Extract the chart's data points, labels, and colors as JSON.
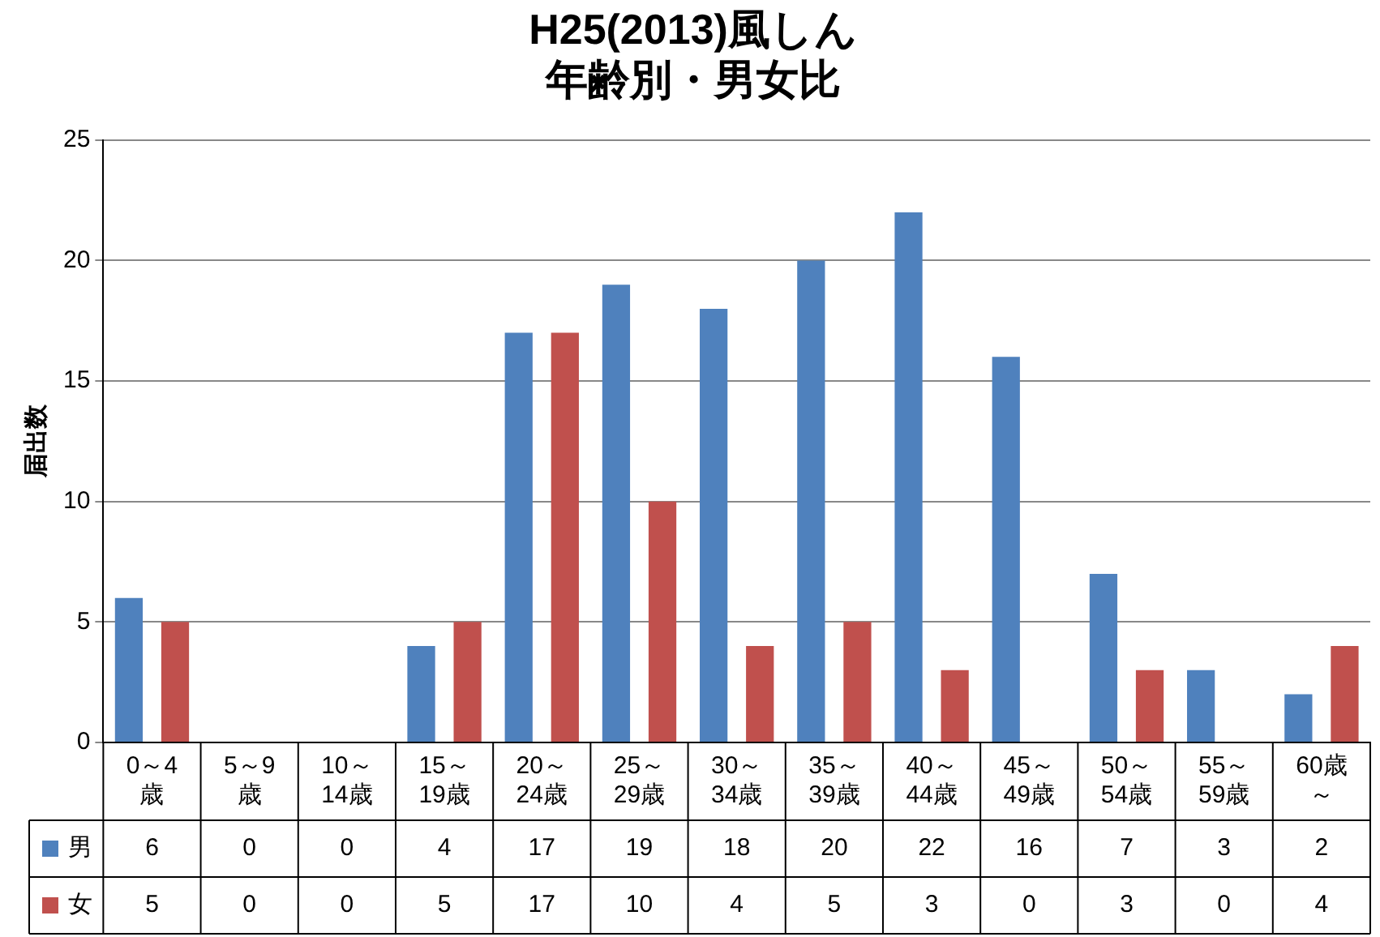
{
  "chart_data": {
    "type": "bar",
    "title": "H25(2013)風しん年齢別・男女比",
    "ylabel": "届出数",
    "categories": [
      "0～4歳",
      "5～9歳",
      "10～14歳",
      "15～19歳",
      "20～24歳",
      "25～29歳",
      "30～34歳",
      "35～39歳",
      "40～44歳",
      "45～49歳",
      "50～54歳",
      "55～59歳",
      "60歳～"
    ],
    "series": [
      {
        "name": "男",
        "color": "#4f81bd",
        "values": [
          6,
          0,
          0,
          4,
          17,
          19,
          18,
          20,
          22,
          16,
          7,
          3,
          2
        ]
      },
      {
        "name": "女",
        "color": "#c0504d",
        "values": [
          5,
          0,
          0,
          5,
          17,
          10,
          4,
          5,
          3,
          0,
          3,
          0,
          4
        ]
      }
    ],
    "ylim": [
      0,
      25
    ],
    "yticks": [
      0,
      5,
      10,
      15,
      20,
      25
    ],
    "grid": "y",
    "legend": "bottom",
    "data_labels": true
  }
}
